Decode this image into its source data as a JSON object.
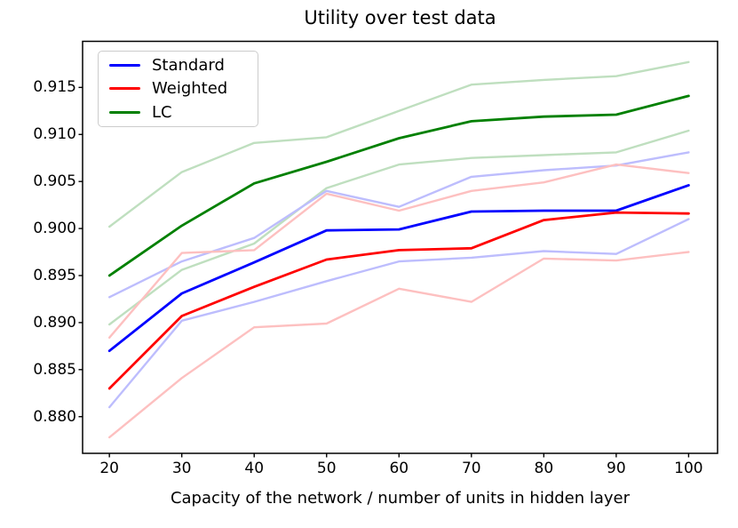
{
  "title": "Utility over test data",
  "xlabel": "Capacity of the network / number of units in hidden layer",
  "legend": {
    "items": [
      {
        "id": "standard",
        "label": "Standard",
        "color": "#0000ff"
      },
      {
        "id": "weighted",
        "label": "Weighted",
        "color": "#ff0000"
      },
      {
        "id": "lc",
        "label": "LC",
        "color": "#008000"
      }
    ]
  },
  "chart_data": {
    "type": "line",
    "x": [
      20,
      30,
      40,
      50,
      60,
      70,
      80,
      90,
      100
    ],
    "xlim": [
      16.3,
      104.0
    ],
    "ylim": [
      0.8761,
      0.9199
    ],
    "grid": false,
    "legend_position": "upper left",
    "x_ticks": [
      {
        "value": 20,
        "label": "20"
      },
      {
        "value": 30,
        "label": "30"
      },
      {
        "value": 40,
        "label": "40"
      },
      {
        "value": 50,
        "label": "50"
      },
      {
        "value": 60,
        "label": "60"
      },
      {
        "value": 70,
        "label": "70"
      },
      {
        "value": 80,
        "label": "80"
      },
      {
        "value": 90,
        "label": "90"
      },
      {
        "value": 100,
        "label": "100"
      }
    ],
    "y_ticks": [
      {
        "value": 0.88,
        "label": "0.880"
      },
      {
        "value": 0.885,
        "label": "0.885"
      },
      {
        "value": 0.89,
        "label": "0.890"
      },
      {
        "value": 0.895,
        "label": "0.895"
      },
      {
        "value": 0.9,
        "label": "0.900"
      },
      {
        "value": 0.905,
        "label": "0.905"
      },
      {
        "value": 0.91,
        "label": "0.910"
      },
      {
        "value": 0.915,
        "label": "0.915"
      }
    ],
    "series": [
      {
        "id": "lc-upper-band",
        "name": "LC upper band",
        "color": "#bfdfbf",
        "width": 2.4,
        "values": [
          0.9002,
          0.906,
          0.9091,
          0.9097,
          0.9125,
          0.9153,
          0.9158,
          0.9162,
          0.9177
        ]
      },
      {
        "id": "lc-lower-band",
        "name": "LC lower band",
        "color": "#bfdfbf",
        "width": 2.4,
        "values": [
          0.8898,
          0.8956,
          0.8984,
          0.9043,
          0.9068,
          0.9075,
          0.9078,
          0.9081,
          0.9104
        ]
      },
      {
        "id": "standard-upper-band",
        "name": "Standard upper band",
        "color": "#bdbdfd",
        "width": 2.4,
        "values": [
          0.8927,
          0.8965,
          0.899,
          0.904,
          0.9023,
          0.9055,
          0.9062,
          0.9067,
          0.9081
        ]
      },
      {
        "id": "standard-lower-band",
        "name": "Standard lower band",
        "color": "#bdbdfd",
        "width": 2.4,
        "values": [
          0.881,
          0.8902,
          0.8922,
          0.8944,
          0.8965,
          0.8969,
          0.8976,
          0.8973,
          0.901
        ]
      },
      {
        "id": "weighted-upper-band",
        "name": "Weighted upper band",
        "color": "#fdc0c0",
        "width": 2.4,
        "values": [
          0.8884,
          0.8974,
          0.8977,
          0.9037,
          0.9019,
          0.904,
          0.9049,
          0.9068,
          0.9059
        ]
      },
      {
        "id": "weighted-lower-band",
        "name": "Weighted lower band",
        "color": "#fdc0c0",
        "width": 2.4,
        "values": [
          0.8778,
          0.8841,
          0.8895,
          0.8899,
          0.8936,
          0.8922,
          0.8968,
          0.8966,
          0.8975
        ]
      },
      {
        "id": "standard",
        "name": "Standard",
        "color": "#0000ff",
        "width": 2.8,
        "values": [
          0.887,
          0.8931,
          0.8964,
          0.8998,
          0.8999,
          0.9018,
          0.9019,
          0.9019,
          0.9046
        ]
      },
      {
        "id": "weighted",
        "name": "Weighted",
        "color": "#ff0000",
        "width": 2.8,
        "values": [
          0.883,
          0.8907,
          0.8938,
          0.8967,
          0.8977,
          0.8979,
          0.9009,
          0.9017,
          0.9016
        ]
      },
      {
        "id": "lc",
        "name": "LC",
        "color": "#008000",
        "width": 2.8,
        "values": [
          0.895,
          0.9003,
          0.9048,
          0.9071,
          0.9096,
          0.9114,
          0.9119,
          0.9121,
          0.9141
        ]
      }
    ]
  }
}
